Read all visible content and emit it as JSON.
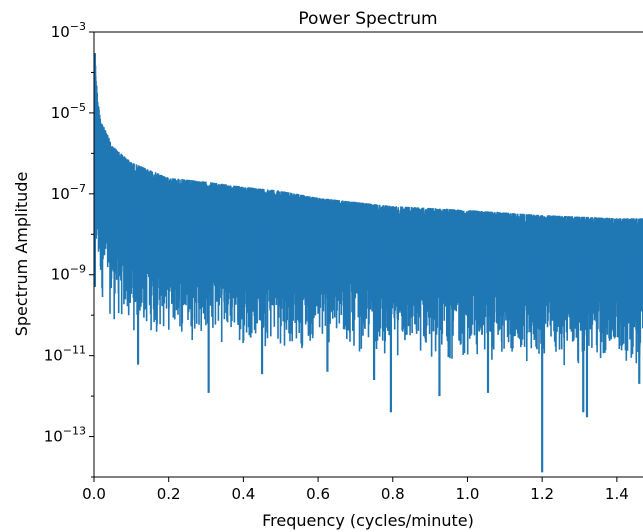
{
  "chart_data": {
    "type": "line",
    "title": "Power Spectrum",
    "xlabel": "Frequency (cycles/minute)",
    "ylabel": "Spectrum Amplitude",
    "xlim": [
      0,
      1.47
    ],
    "ylim": [
      1e-14,
      0.001
    ],
    "yscale": "log",
    "grid": false,
    "x_ticks": [
      {
        "value": 0.0,
        "label": "0.0"
      },
      {
        "value": 0.2,
        "label": "0.2"
      },
      {
        "value": 0.4,
        "label": "0.4"
      },
      {
        "value": 0.6,
        "label": "0.6"
      },
      {
        "value": 0.8,
        "label": "0.8"
      },
      {
        "value": 1.0,
        "label": "1.0"
      },
      {
        "value": 1.2,
        "label": "1.2"
      },
      {
        "value": 1.4,
        "label": "1.4"
      }
    ],
    "y_ticks": [
      {
        "value": 0.001,
        "base": "10",
        "exp": "−3"
      },
      {
        "value": 1e-05,
        "base": "10",
        "exp": "−5"
      },
      {
        "value": 1e-07,
        "base": "10",
        "exp": "−7"
      },
      {
        "value": 1e-09,
        "base": "10",
        "exp": "−9"
      },
      {
        "value": 1e-11,
        "base": "10",
        "exp": "−11"
      },
      {
        "value": 1e-13,
        "base": "10",
        "exp": "−13"
      }
    ],
    "series": [
      {
        "color": "#1f77b4",
        "upper_envelope": [
          [
            0.002,
            0.0003
          ],
          [
            0.01,
            2e-05
          ],
          [
            0.02,
            6e-06
          ],
          [
            0.05,
            1.5e-06
          ],
          [
            0.1,
            6e-07
          ],
          [
            0.2,
            2.5e-07
          ],
          [
            0.3,
            2e-07
          ],
          [
            0.4,
            1.5e-07
          ],
          [
            0.5,
            1.2e-07
          ],
          [
            0.6,
            8e-08
          ],
          [
            0.8,
            5e-08
          ],
          [
            1.0,
            4e-08
          ],
          [
            1.2,
            3e-08
          ],
          [
            1.4,
            2.5e-08
          ],
          [
            1.47,
            2.5e-08
          ]
        ],
        "lower_envelope": [
          [
            0.002,
            5e-10
          ],
          [
            0.05,
            5e-11
          ],
          [
            0.1,
            3e-11
          ],
          [
            0.2,
            2.5e-11
          ],
          [
            0.4,
            1.5e-11
          ],
          [
            0.6,
            1.2e-11
          ],
          [
            0.8,
            8e-12
          ],
          [
            1.0,
            6e-12
          ],
          [
            1.2,
            5e-12
          ],
          [
            1.4,
            5e-12
          ],
          [
            1.47,
            5e-12
          ]
        ],
        "deep_minima": [
          [
            0.118,
            6e-12
          ],
          [
            0.307,
            1.2e-12
          ],
          [
            0.45,
            3.5e-12
          ],
          [
            0.625,
            4e-12
          ],
          [
            0.75,
            2.5e-12
          ],
          [
            0.795,
            4e-13
          ],
          [
            0.925,
            1e-12
          ],
          [
            1.055,
            1.2e-12
          ],
          [
            1.2,
            1.3e-14
          ],
          [
            1.31,
            4e-13
          ],
          [
            1.32,
            3e-13
          ],
          [
            1.46,
            2e-12
          ]
        ]
      }
    ]
  }
}
